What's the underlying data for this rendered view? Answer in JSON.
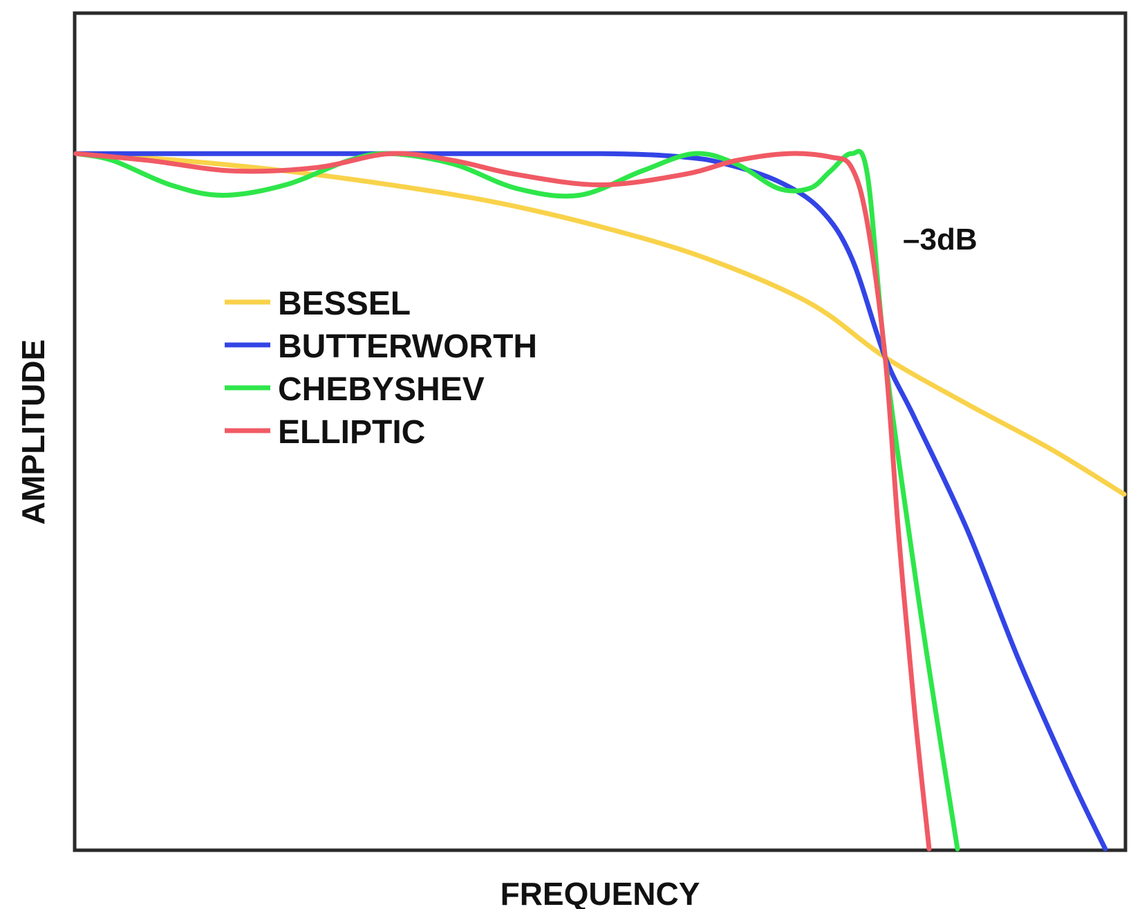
{
  "chart_data": {
    "type": "line",
    "title": "",
    "xlabel": "FREQUENCY",
    "ylabel": "AMPLITUDE",
    "ticks_shown": false,
    "grid": false,
    "legend_position": "left-center",
    "annotation": {
      "text": "–3dB",
      "at": {
        "x": 0.772,
        "y": 0.707
      }
    },
    "xlim": [
      0,
      1
    ],
    "ylim": [
      0,
      1.2
    ],
    "series": [
      {
        "name": "BESSEL",
        "color": "#f9d24a",
        "points": [
          [
            0,
            1.0
          ],
          [
            0.1,
            0.99
          ],
          [
            0.2,
            0.975
          ],
          [
            0.3,
            0.955
          ],
          [
            0.4,
            0.93
          ],
          [
            0.5,
            0.895
          ],
          [
            0.6,
            0.85
          ],
          [
            0.7,
            0.785
          ],
          [
            0.772,
            0.707
          ],
          [
            0.85,
            0.64
          ],
          [
            0.93,
            0.575
          ],
          [
            1.0,
            0.51
          ]
        ]
      },
      {
        "name": "BUTTERWORTH",
        "color": "#3344e6",
        "points": [
          [
            0,
            1.0
          ],
          [
            0.3,
            1.0
          ],
          [
            0.5,
            1.0
          ],
          [
            0.58,
            0.995
          ],
          [
            0.62,
            0.985
          ],
          [
            0.67,
            0.96
          ],
          [
            0.71,
            0.92
          ],
          [
            0.74,
            0.85
          ],
          [
            0.772,
            0.707
          ],
          [
            0.8,
            0.62
          ],
          [
            0.85,
            0.46
          ],
          [
            0.9,
            0.27
          ],
          [
            0.95,
            0.1
          ],
          [
            0.982,
            0.0
          ]
        ]
      },
      {
        "name": "CHEBYSHEV",
        "color": "#2ee64a",
        "points": [
          [
            0,
            1.0
          ],
          [
            0.035,
            0.99
          ],
          [
            0.09,
            0.955
          ],
          [
            0.14,
            0.94
          ],
          [
            0.2,
            0.955
          ],
          [
            0.26,
            0.99
          ],
          [
            0.3,
            1.0
          ],
          [
            0.36,
            0.985
          ],
          [
            0.42,
            0.95
          ],
          [
            0.48,
            0.94
          ],
          [
            0.54,
            0.975
          ],
          [
            0.59,
            1.0
          ],
          [
            0.63,
            0.985
          ],
          [
            0.67,
            0.95
          ],
          [
            0.7,
            0.95
          ],
          [
            0.72,
            0.975
          ],
          [
            0.74,
            1.0
          ],
          [
            0.755,
            0.97
          ],
          [
            0.772,
            0.707
          ],
          [
            0.8,
            0.4
          ],
          [
            0.82,
            0.2
          ],
          [
            0.841,
            0.0
          ]
        ]
      },
      {
        "name": "ELLIPTIC",
        "color": "#f05a64",
        "points": [
          [
            0,
            1.0
          ],
          [
            0.07,
            0.99
          ],
          [
            0.15,
            0.975
          ],
          [
            0.23,
            0.98
          ],
          [
            0.3,
            1.0
          ],
          [
            0.36,
            0.99
          ],
          [
            0.42,
            0.97
          ],
          [
            0.5,
            0.955
          ],
          [
            0.58,
            0.97
          ],
          [
            0.63,
            0.99
          ],
          [
            0.68,
            1.0
          ],
          [
            0.72,
            0.995
          ],
          [
            0.74,
            0.98
          ],
          [
            0.755,
            0.9
          ],
          [
            0.772,
            0.707
          ],
          [
            0.785,
            0.45
          ],
          [
            0.8,
            0.2
          ],
          [
            0.814,
            0.0
          ]
        ]
      }
    ]
  },
  "legend": {
    "items": [
      {
        "label": "BESSEL",
        "color": "#f9d24a"
      },
      {
        "label": "BUTTERWORTH",
        "color": "#3344e6"
      },
      {
        "label": "CHEBYSHEV",
        "color": "#2ee64a"
      },
      {
        "label": "ELLIPTIC",
        "color": "#f05a64"
      }
    ]
  }
}
